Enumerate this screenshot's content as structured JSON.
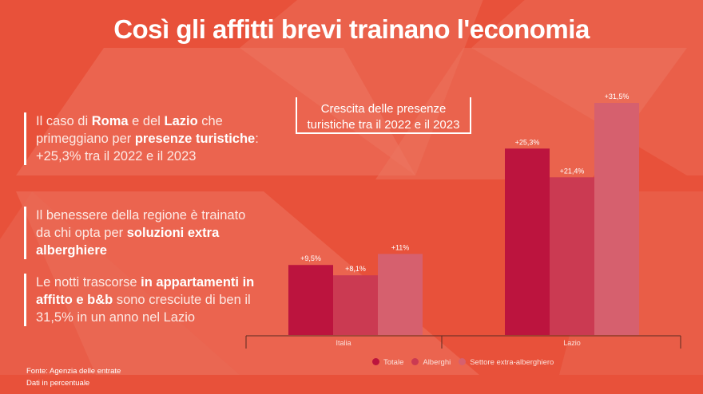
{
  "title": "Così gli affitti brevi trainano l'economia",
  "paragraphs": [
    [
      {
        "text": "Il caso di ",
        "bold": false
      },
      {
        "text": "Roma",
        "bold": true
      },
      {
        "text": " e del ",
        "bold": false
      },
      {
        "text": "Lazio",
        "bold": true
      },
      {
        "text": " che primeggiano per ",
        "bold": false
      },
      {
        "text": "presenze turistiche",
        "bold": true
      },
      {
        "text": ": +25,3% tra il 2022 e il 2023",
        "bold": false
      }
    ],
    [
      {
        "text": "Il benessere della regione è trainato da chi opta per ",
        "bold": false
      },
      {
        "text": "soluzioni extra alberghiere",
        "bold": true
      }
    ],
    [
      {
        "text": "Le notti trascorse ",
        "bold": false
      },
      {
        "text": "in appartamenti in affitto e b&b",
        "bold": true
      },
      {
        "text": " sono cresciute di ben il 31,5% in un anno nel Lazio",
        "bold": false
      }
    ]
  ],
  "source": {
    "line1": "Fonte: Agenzia delle entrate",
    "line2": "Dati in percentuale"
  },
  "colors": {
    "background": "#E8513A",
    "totale": "#BC143E",
    "alberghi": "#CB3A52",
    "extra": "#D6606E"
  },
  "chart_data": {
    "type": "bar",
    "title": "Crescita delle presenze turistiche tra il 2022 e il 2023",
    "categories": [
      "Italia",
      "Lazio"
    ],
    "series": [
      {
        "name": "Totale",
        "values": [
          9.5,
          25.3
        ],
        "labels": [
          "+9,5%",
          "+25,3%"
        ],
        "color": "#BC143E"
      },
      {
        "name": "Alberghi",
        "values": [
          8.1,
          21.4
        ],
        "labels": [
          "+8,1%",
          "+21,4%"
        ],
        "color": "#CB3A52"
      },
      {
        "name": "Settore extra-alberghiero",
        "values": [
          11,
          31.5
        ],
        "labels": [
          "+11%",
          "+31,5%"
        ],
        "color": "#D6606E"
      }
    ],
    "ylim": [
      0,
      31.5
    ],
    "grid": false,
    "legend": "bottom"
  }
}
